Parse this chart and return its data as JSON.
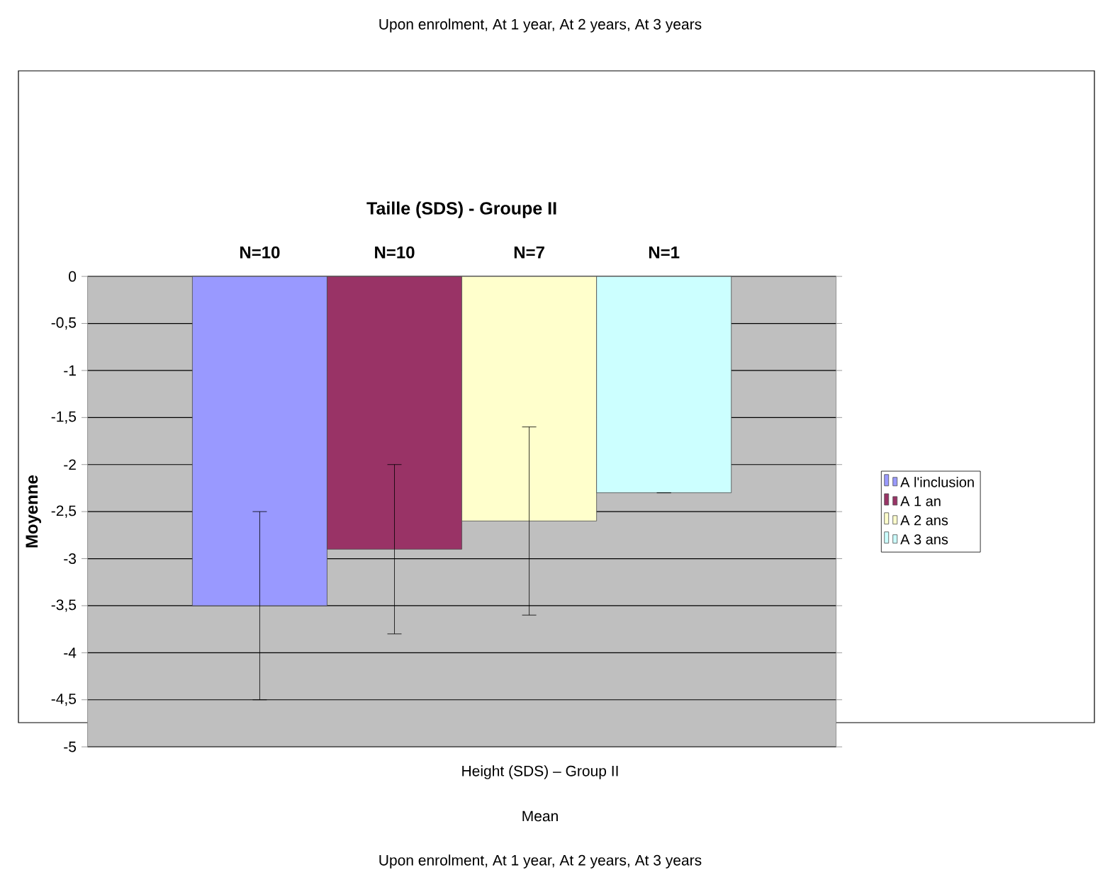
{
  "chart_data": {
    "type": "bar",
    "title": "Taille (SDS) - Groupe II",
    "ylabel": "Moyenne",
    "categories": [
      null
    ],
    "series": [
      {
        "name": "A l'inclusion",
        "color": "#9999ff",
        "values": [
          -3.5
        ],
        "errors": [
          1
        ]
      },
      {
        "name": "A 1 an",
        "color": "#993366",
        "values": [
          -2.9
        ],
        "errors": [
          0.9
        ]
      },
      {
        "name": "A 2 ans",
        "color": "#ffffcc",
        "values": [
          -2.6
        ],
        "errors": [
          1
        ]
      },
      {
        "name": "A 3 ans",
        "color": "#ccffff",
        "values": [
          -2.3
        ],
        "errors": [
          0
        ]
      }
    ],
    "ylim": [
      -5,
      0
    ],
    "yticks": [
      0,
      {
        "value": -0.5,
        "label": "-0,5"
      },
      -1,
      {
        "value": -1.5,
        "label": "-1,5"
      },
      -2,
      {
        "value": -2.5,
        "label": "-2,5"
      },
      -3,
      {
        "value": -3.5,
        "label": "-3,5"
      },
      -4,
      {
        "value": -4.5,
        "label": "-4,5"
      },
      -5
    ],
    "grid": "y",
    "legend": "right",
    "annotations": [
      "Upon enrolment, At 1 year, At 2 years, At 3 years",
      "N=10",
      "N=10",
      "N=7",
      "N=1",
      "Height (SDS) – Group II",
      "Mean",
      "Upon enrolment, At 1 year, At 2 years, At 3 years"
    ]
  }
}
